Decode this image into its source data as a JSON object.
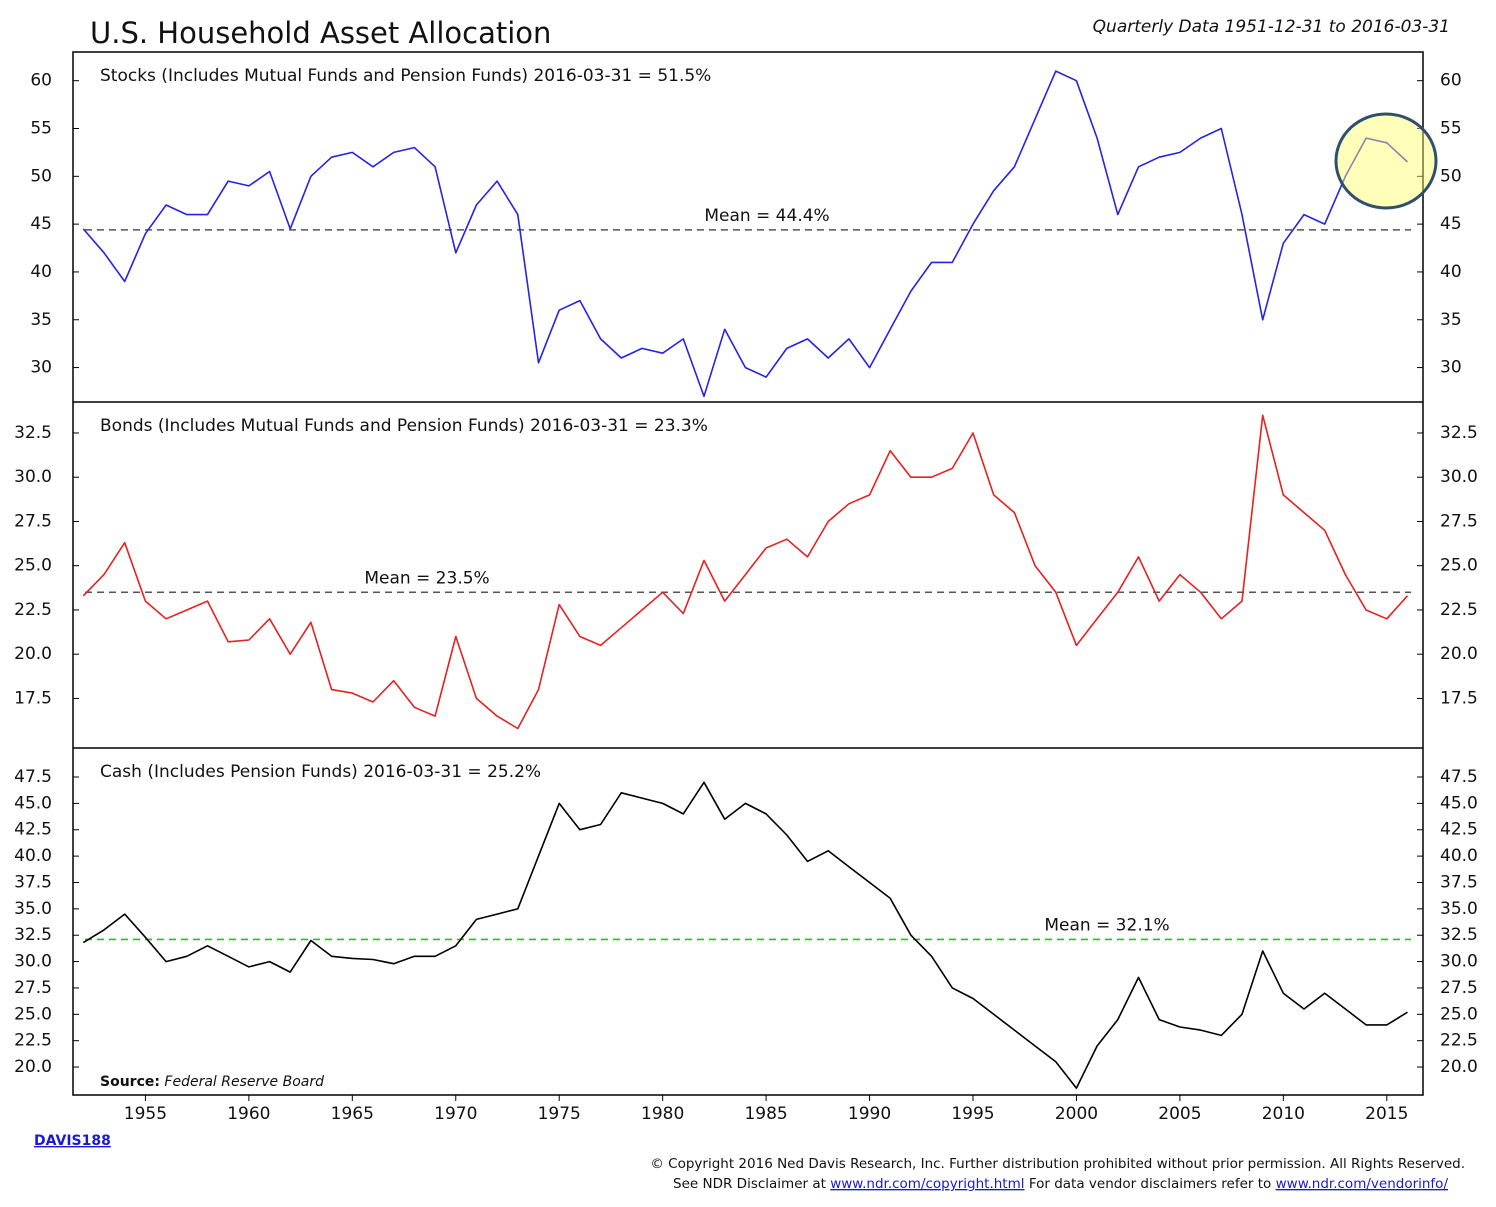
{
  "title": "U.S. Household Asset Allocation",
  "subtitle": "Quarterly Data 1951-12-31 to 2016-03-31",
  "source_label": "Source:",
  "source": "Federal Reserve Board",
  "code": "DAVIS188",
  "copyright": "© Copyright 2016 Ned Davis Research, Inc. Further distribution prohibited without prior permission. All Rights Reserved.",
  "disclaimer": {
    "text1": "See NDR Disclaimer at",
    "link1": "www.ndr.com/copyright.html",
    "text2": "For data vendor disclaimers refer to",
    "link2": "www.ndr.com/vendorinfo/"
  },
  "chart_data": [
    {
      "type": "line",
      "label": "Stocks (Includes Mutual Funds and Pension Funds) 2016-03-31 = 51.5%",
      "x": [
        1952,
        1953,
        1954,
        1955,
        1956,
        1957,
        1958,
        1959,
        1960,
        1961,
        1962,
        1963,
        1964,
        1965,
        1966,
        1967,
        1968,
        1969,
        1970,
        1971,
        1972,
        1973,
        1974,
        1975,
        1976,
        1977,
        1978,
        1979,
        1980,
        1981,
        1982,
        1983,
        1984,
        1985,
        1986,
        1987,
        1988,
        1989,
        1990,
        1991,
        1992,
        1993,
        1994,
        1995,
        1996,
        1997,
        1998,
        1999,
        2000,
        2001,
        2002,
        2003,
        2004,
        2005,
        2006,
        2007,
        2008,
        2009,
        2010,
        2011,
        2012,
        2013,
        2014,
        2015,
        2016
      ],
      "series": [
        {
          "name": "Stocks",
          "color": "#2424e6",
          "values": [
            44.5,
            42,
            39,
            44,
            47,
            46,
            46,
            49.5,
            49,
            50.5,
            44.5,
            50,
            52,
            52.5,
            51,
            52.5,
            53,
            51,
            42,
            47,
            49.5,
            46,
            30.5,
            36,
            37,
            33,
            31,
            32,
            31.5,
            33,
            27,
            34,
            30,
            29,
            32,
            33,
            31,
            33,
            30,
            34,
            38,
            41,
            41,
            45,
            48.5,
            51,
            56,
            61,
            60,
            54,
            46,
            51,
            52,
            52.5,
            54,
            55,
            46,
            35,
            43,
            46,
            45,
            50,
            54,
            53.5,
            51.5
          ]
        }
      ],
      "mean": {
        "value": 44.4,
        "label": "Mean = 44.4%",
        "color": "#555555"
      },
      "xlim": [
        1951.5,
        2016.75
      ],
      "ylim": [
        26.4,
        63
      ],
      "yticks": [
        30,
        35,
        40,
        45,
        50,
        55,
        60
      ]
    },
    {
      "type": "line",
      "label": "Bonds (Includes Mutual Funds and Pension Funds) 2016-03-31 = 23.3%",
      "x": [
        1952,
        1953,
        1954,
        1955,
        1956,
        1957,
        1958,
        1959,
        1960,
        1961,
        1962,
        1963,
        1964,
        1965,
        1966,
        1967,
        1968,
        1969,
        1970,
        1971,
        1972,
        1973,
        1974,
        1975,
        1976,
        1977,
        1978,
        1979,
        1980,
        1981,
        1982,
        1983,
        1984,
        1985,
        1986,
        1987,
        1988,
        1989,
        1990,
        1991,
        1992,
        1993,
        1994,
        1995,
        1996,
        1997,
        1998,
        1999,
        2000,
        2001,
        2002,
        2003,
        2004,
        2005,
        2006,
        2007,
        2008,
        2009,
        2010,
        2011,
        2012,
        2013,
        2014,
        2015,
        2016
      ],
      "series": [
        {
          "name": "Bonds",
          "color": "#e82020",
          "values": [
            23.3,
            24.5,
            26.3,
            23,
            22,
            22.5,
            23,
            20.7,
            20.8,
            22,
            20,
            21.8,
            18,
            17.8,
            17.3,
            18.5,
            17,
            16.5,
            21,
            17.5,
            16.5,
            15.8,
            18,
            22.8,
            21,
            20.5,
            21.5,
            22.5,
            23.5,
            22.3,
            25.3,
            23,
            24.5,
            26,
            26.5,
            25.5,
            27.5,
            28.5,
            29,
            31.5,
            30,
            30,
            30.5,
            32.5,
            29,
            28,
            25,
            23.5,
            20.5,
            22,
            23.5,
            25.5,
            23,
            24.5,
            23.5,
            22,
            23,
            33.5,
            29,
            28,
            27,
            24.5,
            22.5,
            22,
            23.3
          ]
        }
      ],
      "mean": {
        "value": 23.5,
        "label": "Mean = 23.5%",
        "color": "#555555"
      },
      "xlim": [
        1951.5,
        2016.75
      ],
      "ylim": [
        14.7,
        34.25
      ],
      "yticks": [
        17.5,
        {
          "value": 20,
          "label": "20.0"
        },
        22.5,
        {
          "value": 25,
          "label": "25.0"
        },
        27.5,
        {
          "value": 30,
          "label": "30.0"
        },
        32.5
      ]
    },
    {
      "type": "line",
      "label": "Cash (Includes Pension Funds) 2016-03-31 = 25.2%",
      "x": [
        1952,
        1953,
        1954,
        1955,
        1956,
        1957,
        1958,
        1959,
        1960,
        1961,
        1962,
        1963,
        1964,
        1965,
        1966,
        1967,
        1968,
        1969,
        1970,
        1971,
        1972,
        1973,
        1974,
        1975,
        1976,
        1977,
        1978,
        1979,
        1980,
        1981,
        1982,
        1983,
        1984,
        1985,
        1986,
        1987,
        1988,
        1989,
        1990,
        1991,
        1992,
        1993,
        1994,
        1995,
        1996,
        1997,
        1998,
        1999,
        2000,
        2001,
        2002,
        2003,
        2004,
        2005,
        2006,
        2007,
        2008,
        2009,
        2010,
        2011,
        2012,
        2013,
        2014,
        2015,
        2016
      ],
      "series": [
        {
          "name": "Cash",
          "color": "#000000",
          "values": [
            31.8,
            33,
            34.5,
            32.3,
            30,
            30.5,
            31.5,
            30.5,
            29.5,
            30,
            29,
            32,
            30.5,
            30.3,
            30.2,
            29.8,
            30.5,
            30.5,
            31.5,
            34,
            34.5,
            35,
            40,
            45,
            42.5,
            43,
            46,
            45.5,
            45,
            44,
            47,
            43.5,
            45,
            44,
            42,
            39.5,
            40.5,
            39,
            37.5,
            36,
            32.5,
            30.5,
            27.5,
            26.5,
            25,
            23.5,
            22,
            20.5,
            18,
            22,
            24.5,
            28.5,
            24.5,
            23.8,
            23.5,
            23,
            25,
            31,
            27,
            25.5,
            27,
            25.5,
            24,
            24,
            25.2
          ]
        }
      ],
      "mean": {
        "value": 32.1,
        "label": "Mean = 32.1%",
        "color": "#22c422"
      },
      "xlim": [
        1951.5,
        2016.75
      ],
      "ylim": [
        17.35,
        50.25
      ],
      "yticks": [
        {
          "value": 20,
          "label": "20.0"
        },
        22.5,
        {
          "value": 25,
          "label": "25.0"
        },
        27.5,
        {
          "value": 30,
          "label": "30.0"
        },
        32.5,
        {
          "value": 35,
          "label": "35.0"
        },
        37.5,
        {
          "value": 40,
          "label": "40.0"
        },
        42.5,
        {
          "value": 45,
          "label": "45.0"
        },
        47.5
      ],
      "xticks": [
        1955,
        1960,
        1965,
        1970,
        1975,
        1980,
        1985,
        1990,
        1995,
        2000,
        2005,
        2010,
        2015
      ]
    }
  ]
}
